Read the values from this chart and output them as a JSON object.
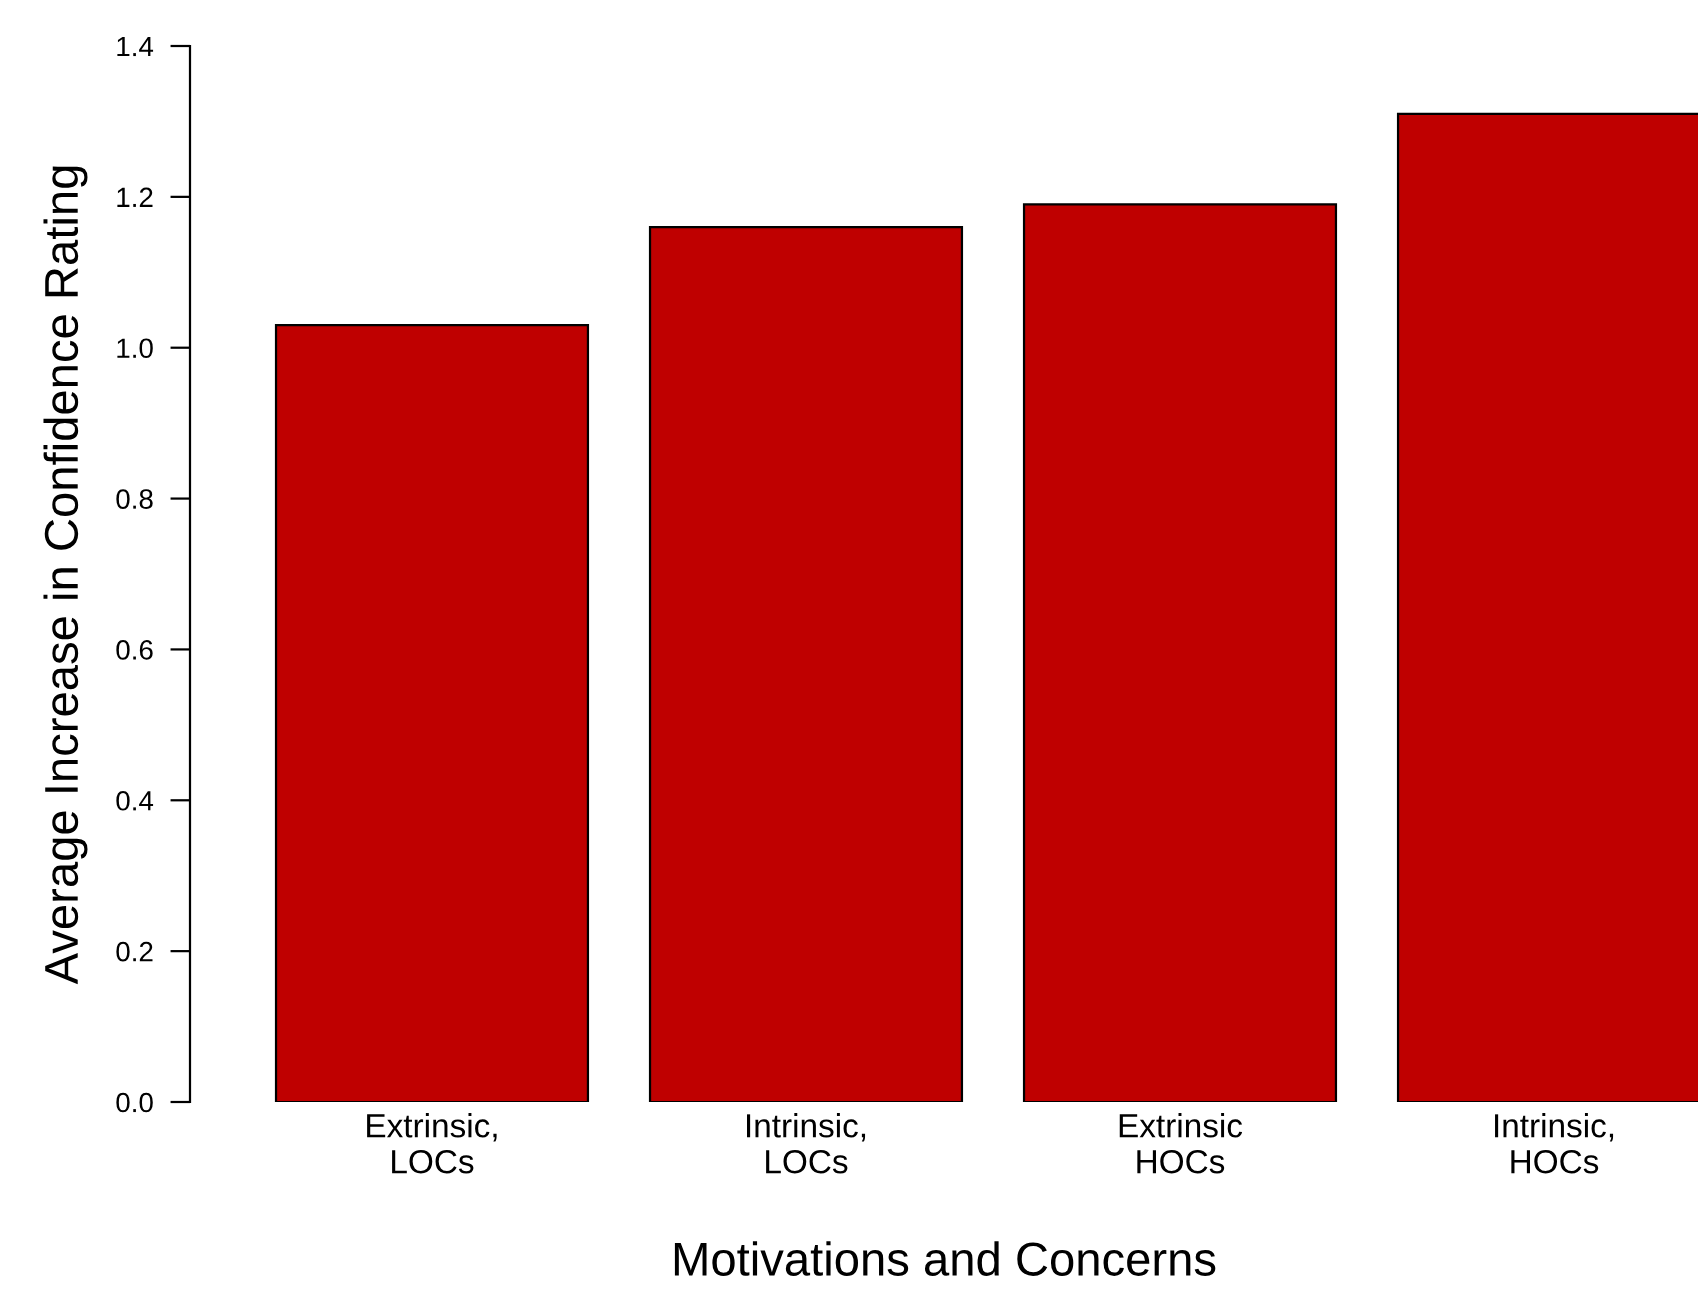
{
  "chart_data": {
    "type": "bar",
    "xlabel": "Motivations and Concerns",
    "ylabel": "Average Increase in Confidence Rating",
    "categories": [
      "Extrinsic,\nLOCs",
      "Intrinsic,\nLOCs",
      "Extrinsic\nHOCs",
      "Intrinsic,\nHOCs"
    ],
    "values": [
      1.03,
      1.16,
      1.19,
      1.31
    ],
    "color": "#bf0000",
    "ylim": [
      0,
      1.4
    ],
    "yticks": [
      {
        "value": 0,
        "label": "0.0"
      },
      {
        "value": 0.2,
        "label": "0.2"
      },
      {
        "value": 0.4,
        "label": "0.4"
      },
      {
        "value": 0.6,
        "label": "0.6"
      },
      {
        "value": 0.8,
        "label": "0.8"
      },
      {
        "value": 1.0,
        "label": "1.0"
      },
      {
        "value": 1.2,
        "label": "1.2"
      },
      {
        "value": 1.4,
        "label": "1.4"
      }
    ],
    "grid": false,
    "legend": false
  }
}
